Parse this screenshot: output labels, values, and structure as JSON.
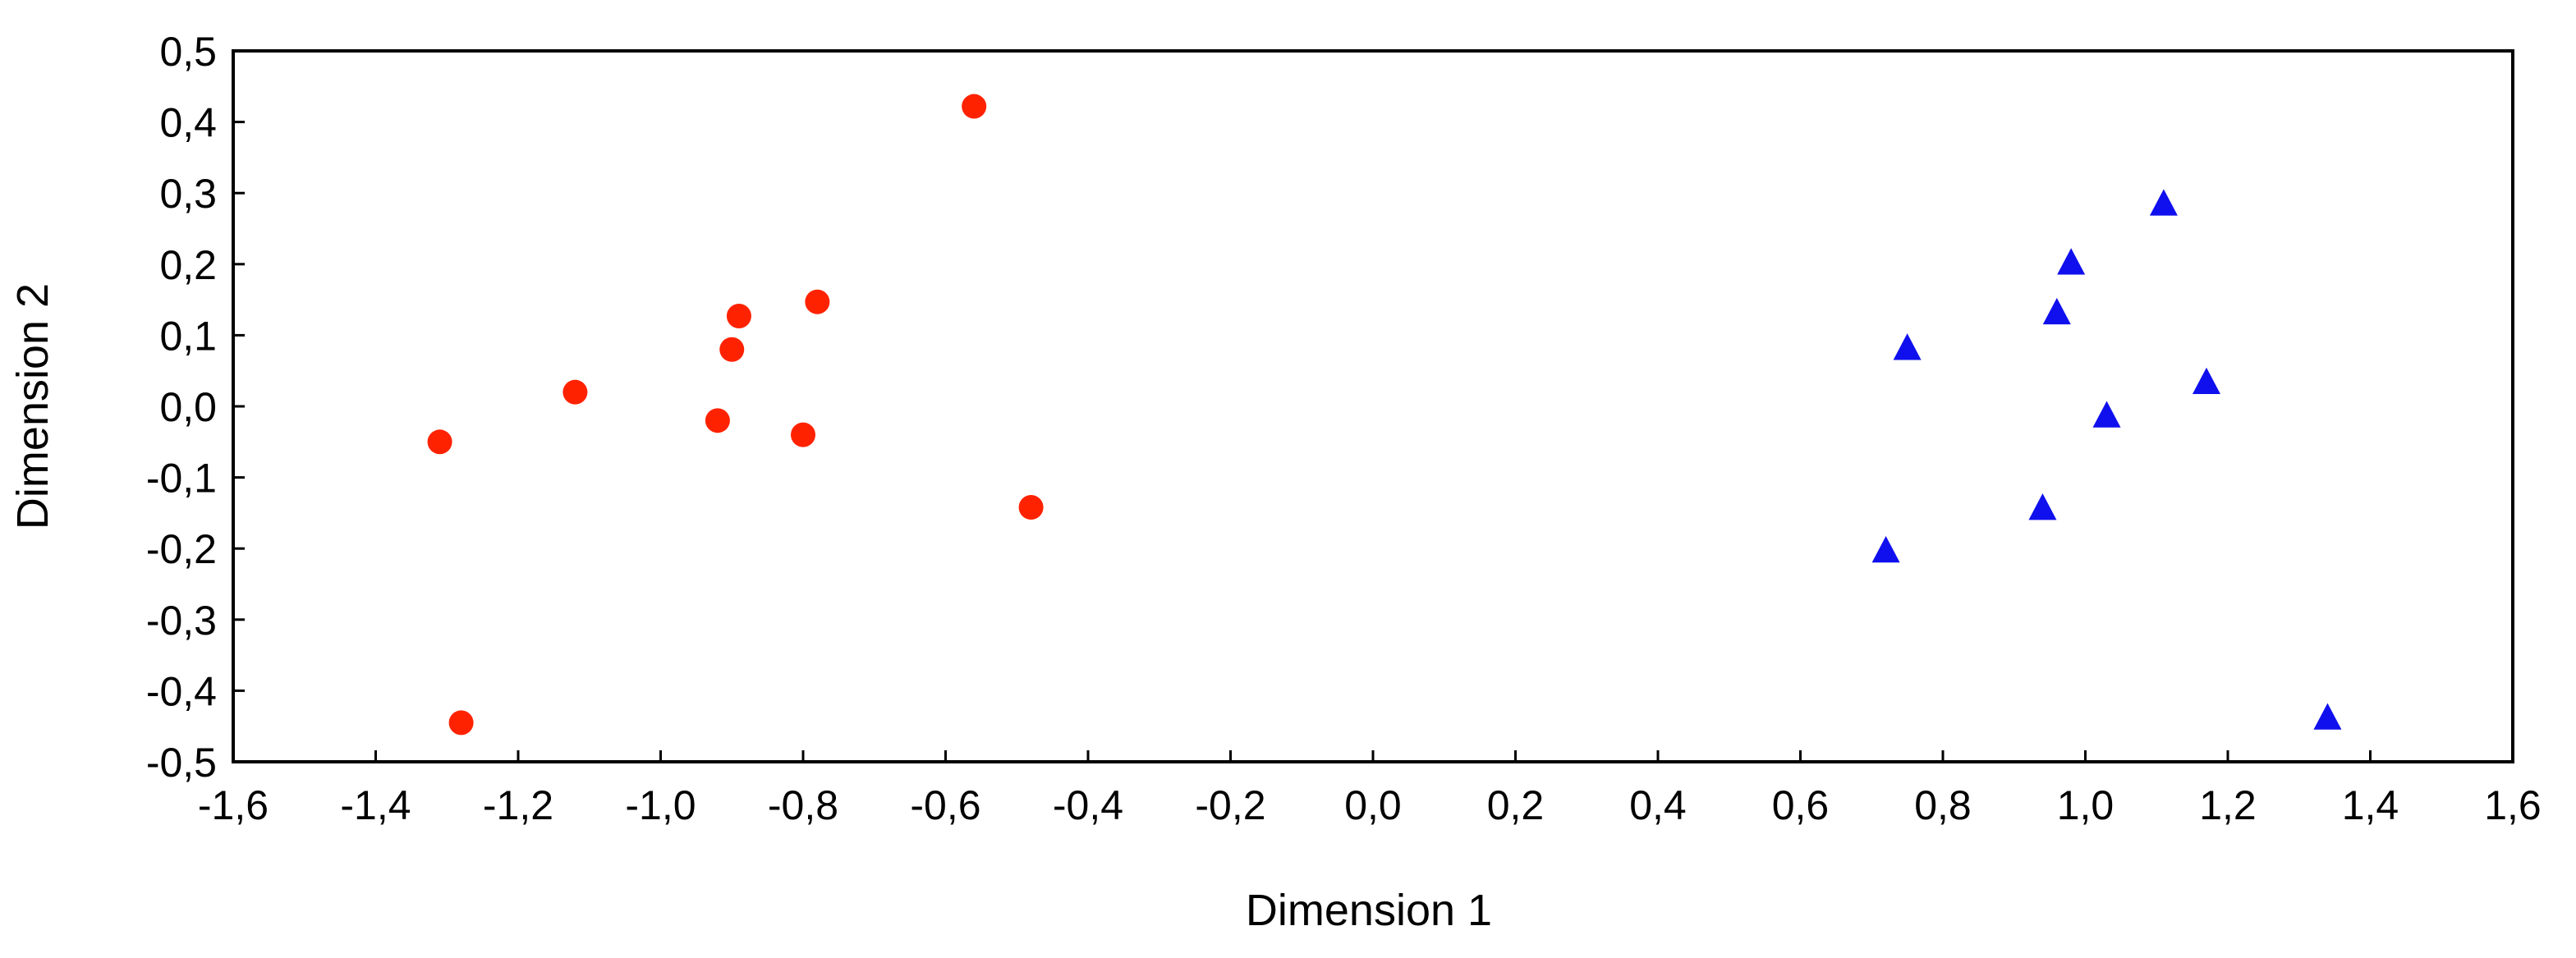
{
  "chart_data": {
    "type": "scatter",
    "title": "",
    "xlabel": "Dimension 1",
    "ylabel": "Dimension 2",
    "xlim": [
      -1.6,
      1.6
    ],
    "ylim": [
      -0.5,
      0.5
    ],
    "x_ticks": [
      -1.6,
      -1.4,
      -1.2,
      -1.0,
      -0.8,
      -0.6,
      -0.4,
      -0.2,
      0.0,
      0.2,
      0.4,
      0.6,
      0.8,
      1.0,
      1.2,
      1.4,
      1.6
    ],
    "x_tick_labels": [
      "-1,6",
      "-1,4",
      "-1,2",
      "-1,0",
      "-0,8",
      "-0,6",
      "-0,4",
      "-0,2",
      "0,0",
      "0,2",
      "0,4",
      "0,6",
      "0,8",
      "1,0",
      "1,2",
      "1,4",
      "1,6"
    ],
    "y_ticks": [
      0.5,
      0.4,
      0.3,
      0.2,
      0.1,
      0.0,
      -0.1,
      -0.2,
      -0.3,
      -0.4,
      -0.5
    ],
    "y_tick_labels": [
      "0,5",
      "0,4",
      "0,3",
      "0,2",
      "0,1",
      "0,0",
      "-0,1",
      "-0,2",
      "-0,3",
      "-0,4",
      "-0,5"
    ],
    "grid": false,
    "legend": "none",
    "series": [
      {
        "marker": "circle",
        "color": "#ff2200",
        "points": [
          {
            "x": -1.31,
            "y": -0.05
          },
          {
            "x": -1.28,
            "y": -0.445
          },
          {
            "x": -1.12,
            "y": 0.02
          },
          {
            "x": -0.92,
            "y": -0.02
          },
          {
            "x": -0.9,
            "y": 0.08
          },
          {
            "x": -0.89,
            "y": 0.127
          },
          {
            "x": -0.8,
            "y": -0.04
          },
          {
            "x": -0.78,
            "y": 0.147
          },
          {
            "x": -0.56,
            "y": 0.422
          },
          {
            "x": -0.48,
            "y": -0.142
          }
        ]
      },
      {
        "marker": "triangle",
        "color": "#1010ee",
        "points": [
          {
            "x": 0.72,
            "y": -0.205
          },
          {
            "x": 0.75,
            "y": 0.08
          },
          {
            "x": 0.94,
            "y": -0.145
          },
          {
            "x": 0.96,
            "y": 0.13
          },
          {
            "x": 0.98,
            "y": 0.2
          },
          {
            "x": 1.03,
            "y": -0.015
          },
          {
            "x": 1.11,
            "y": 0.283
          },
          {
            "x": 1.17,
            "y": 0.032
          },
          {
            "x": 1.34,
            "y": -0.44
          }
        ]
      }
    ]
  }
}
